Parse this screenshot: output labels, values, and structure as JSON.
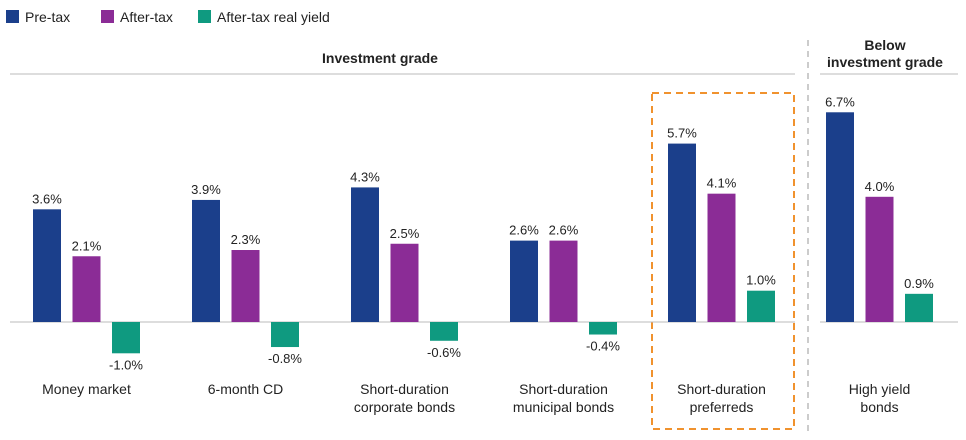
{
  "chart_data": {
    "type": "bar",
    "legend_position": "top-left",
    "series": [
      {
        "name": "Pre-tax",
        "color": "#1b3f8b",
        "values": [
          3.6,
          3.9,
          4.3,
          2.6,
          5.7,
          6.7
        ],
        "labels": [
          "3.6%",
          "3.9%",
          "4.3%",
          "2.6%",
          "5.7%",
          "6.7%"
        ]
      },
      {
        "name": "After-tax",
        "color": "#8b2c96",
        "values": [
          2.1,
          2.3,
          2.5,
          2.6,
          4.1,
          4.0
        ],
        "labels": [
          "2.1%",
          "2.3%",
          "2.5%",
          "2.6%",
          "4.1%",
          "4.0%"
        ]
      },
      {
        "name": "After-tax real yield",
        "color": "#0f9a80",
        "values": [
          -1.0,
          -0.8,
          -0.6,
          -0.4,
          1.0,
          0.9
        ],
        "labels": [
          "-1.0%",
          "-0.8%",
          "-0.6%",
          "-0.4%",
          "1.0%",
          "0.9%"
        ]
      }
    ],
    "categories": [
      [
        "Money market"
      ],
      [
        "6-month CD"
      ],
      [
        "Short-duration",
        "corporate bonds"
      ],
      [
        "Short-duration",
        "municipal bonds"
      ],
      [
        "Short-duration",
        "preferreds"
      ],
      [
        "High yield",
        "bonds"
      ]
    ],
    "groups": [
      {
        "label": [
          "Investment grade"
        ],
        "categories": [
          0,
          1,
          2,
          3,
          4
        ]
      },
      {
        "label": [
          "Below",
          "investment grade"
        ],
        "categories": [
          5
        ]
      }
    ],
    "highlighted_category": 4,
    "highlight_color": "#f0922e",
    "divider_color": "#aaaaaa",
    "baseline_color": "#bbbbbb",
    "grid": false
  }
}
